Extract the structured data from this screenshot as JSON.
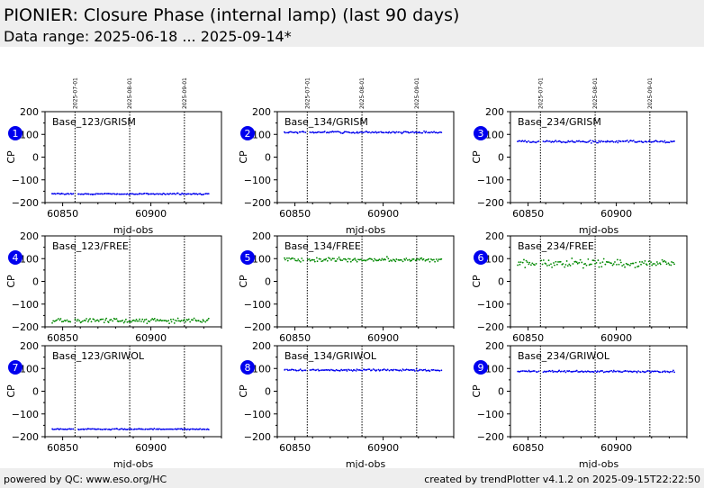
{
  "header": {
    "title": "PIONIER: Closure Phase (internal lamp) (last 90 days)",
    "subtitle": "Data range: 2025-06-18 ... 2025-09-14*"
  },
  "footer": {
    "left": "powered by QC: www.eso.org/HC",
    "right": "created by trendPlotter v4.1.2 on 2025-09-15T22:22:50"
  },
  "colors": {
    "grism": "#0000ee",
    "free": "#008800",
    "griwol": "#0000ee",
    "badge": "#0000ee"
  },
  "chart_data": [
    {
      "type": "scatter",
      "panel": 1,
      "title": "Base_123/GRISM",
      "xlabel": "mjd-obs",
      "ylabel": "CP",
      "xlim": [
        60840,
        60940
      ],
      "ylim": [
        -200,
        200
      ],
      "xticks": [
        60850,
        60900
      ],
      "yticks": [
        -200,
        -100,
        0,
        100,
        200
      ],
      "date_markers": [
        {
          "mjd": 60857,
          "label": "2025-07-01"
        },
        {
          "mjd": 60888,
          "label": "2025-08-01"
        },
        {
          "mjd": 60919,
          "label": "2025-09-01"
        }
      ],
      "series": [
        {
          "x_range": [
            60844,
            60933
          ],
          "mean": -162,
          "scatter": 2,
          "gaps": [
            [
              60856,
              60858
            ]
          ]
        }
      ]
    },
    {
      "type": "scatter",
      "panel": 2,
      "title": "Base_134/GRISM",
      "xlabel": "mjd-obs",
      "ylabel": "CP",
      "xlim": [
        60840,
        60940
      ],
      "ylim": [
        -200,
        200
      ],
      "xticks": [
        60850,
        60900
      ],
      "yticks": [
        -200,
        -100,
        0,
        100,
        200
      ],
      "date_markers": [
        {
          "mjd": 60857,
          "label": "2025-07-01"
        },
        {
          "mjd": 60888,
          "label": "2025-08-01"
        },
        {
          "mjd": 60919,
          "label": "2025-09-01"
        }
      ],
      "series": [
        {
          "x_range": [
            60844,
            60933
          ],
          "mean": 109,
          "scatter": 3,
          "gaps": [
            [
              60856,
              60858
            ]
          ]
        }
      ]
    },
    {
      "type": "scatter",
      "panel": 3,
      "title": "Base_234/GRISM",
      "xlabel": "mjd-obs",
      "ylabel": "CP",
      "xlim": [
        60840,
        60940
      ],
      "ylim": [
        -200,
        200
      ],
      "xticks": [
        60850,
        60900
      ],
      "yticks": [
        -200,
        -100,
        0,
        100,
        200
      ],
      "date_markers": [
        {
          "mjd": 60857,
          "label": "2025-07-01"
        },
        {
          "mjd": 60888,
          "label": "2025-08-01"
        },
        {
          "mjd": 60919,
          "label": "2025-09-01"
        }
      ],
      "series": [
        {
          "x_range": [
            60844,
            60933
          ],
          "mean": 68,
          "scatter": 4,
          "gaps": [
            [
              60856,
              60858
            ]
          ]
        }
      ]
    },
    {
      "type": "scatter",
      "panel": 4,
      "title": "Base_123/FREE",
      "xlabel": "",
      "ylabel": "CP",
      "xlim": [
        60840,
        60940
      ],
      "ylim": [
        -200,
        200
      ],
      "xticks": [
        60850,
        60900
      ],
      "yticks": [
        -200,
        -100,
        0,
        100,
        200
      ],
      "date_markers": [
        {
          "mjd": 60857,
          "label": "2025-07-01"
        },
        {
          "mjd": 60888,
          "label": "2025-08-01"
        },
        {
          "mjd": 60919,
          "label": "2025-09-01"
        }
      ],
      "series": [
        {
          "x_range": [
            60844,
            60933
          ],
          "mean": -172,
          "scatter": 8,
          "gaps": [
            [
              60855,
              60857
            ]
          ]
        }
      ]
    },
    {
      "type": "scatter",
      "panel": 5,
      "title": "Base_134/FREE",
      "xlabel": "",
      "ylabel": "CP",
      "xlim": [
        60840,
        60940
      ],
      "ylim": [
        -200,
        200
      ],
      "xticks": [
        60850,
        60900
      ],
      "yticks": [
        -200,
        -100,
        0,
        100,
        200
      ],
      "date_markers": [
        {
          "mjd": 60857,
          "label": "2025-07-01"
        },
        {
          "mjd": 60888,
          "label": "2025-08-01"
        },
        {
          "mjd": 60919,
          "label": "2025-09-01"
        }
      ],
      "series": [
        {
          "x_range": [
            60844,
            60933
          ],
          "mean": 95,
          "scatter": 8,
          "gaps": [
            [
              60855,
              60857
            ]
          ]
        }
      ]
    },
    {
      "type": "scatter",
      "panel": 6,
      "title": "Base_234/FREE",
      "xlabel": "",
      "ylabel": "CP",
      "xlim": [
        60840,
        60940
      ],
      "ylim": [
        -200,
        200
      ],
      "xticks": [
        60850,
        60900
      ],
      "yticks": [
        -200,
        -100,
        0,
        100,
        200
      ],
      "date_markers": [
        {
          "mjd": 60857,
          "label": "2025-07-01"
        },
        {
          "mjd": 60888,
          "label": "2025-08-01"
        },
        {
          "mjd": 60919,
          "label": "2025-09-01"
        }
      ],
      "series": [
        {
          "x_range": [
            60844,
            60933
          ],
          "mean": 80,
          "scatter": 14,
          "gaps": [
            [
              60855,
              60857
            ]
          ]
        }
      ]
    },
    {
      "type": "scatter",
      "panel": 7,
      "title": "Base_123/GRIWOL",
      "xlabel": "mjd-obs",
      "ylabel": "CP",
      "xlim": [
        60840,
        60940
      ],
      "ylim": [
        -200,
        200
      ],
      "xticks": [
        60850,
        60900
      ],
      "yticks": [
        -200,
        -100,
        0,
        100,
        200
      ],
      "date_markers": [
        {
          "mjd": 60857,
          "label": "2025-07-01"
        },
        {
          "mjd": 60888,
          "label": "2025-08-01"
        },
        {
          "mjd": 60919,
          "label": "2025-09-01"
        }
      ],
      "series": [
        {
          "x_range": [
            60844,
            60933
          ],
          "mean": -167,
          "scatter": 2,
          "gaps": [
            [
              60856,
              60858
            ]
          ]
        }
      ]
    },
    {
      "type": "scatter",
      "panel": 8,
      "title": "Base_134/GRIWOL",
      "xlabel": "mjd-obs",
      "ylabel": "CP",
      "xlim": [
        60840,
        60940
      ],
      "ylim": [
        -200,
        200
      ],
      "xticks": [
        60850,
        60900
      ],
      "yticks": [
        -200,
        -100,
        0,
        100,
        200
      ],
      "date_markers": [
        {
          "mjd": 60857,
          "label": "2025-07-01"
        },
        {
          "mjd": 60888,
          "label": "2025-08-01"
        },
        {
          "mjd": 60919,
          "label": "2025-09-01"
        }
      ],
      "series": [
        {
          "x_range": [
            60844,
            60933
          ],
          "mean": 93,
          "scatter": 3,
          "gaps": [
            [
              60856,
              60858
            ]
          ]
        }
      ]
    },
    {
      "type": "scatter",
      "panel": 9,
      "title": "Base_234/GRIWOL",
      "xlabel": "mjd-obs",
      "ylabel": "CP",
      "xlim": [
        60840,
        60940
      ],
      "ylim": [
        -200,
        200
      ],
      "xticks": [
        60850,
        60900
      ],
      "yticks": [
        -200,
        -100,
        0,
        100,
        200
      ],
      "date_markers": [
        {
          "mjd": 60857,
          "label": "2025-07-01"
        },
        {
          "mjd": 60888,
          "label": "2025-08-01"
        },
        {
          "mjd": 60919,
          "label": "2025-09-01"
        }
      ],
      "series": [
        {
          "x_range": [
            60844,
            60933
          ],
          "mean": 87,
          "scatter": 3,
          "gaps": [
            [
              60856,
              60858
            ]
          ]
        }
      ]
    }
  ]
}
